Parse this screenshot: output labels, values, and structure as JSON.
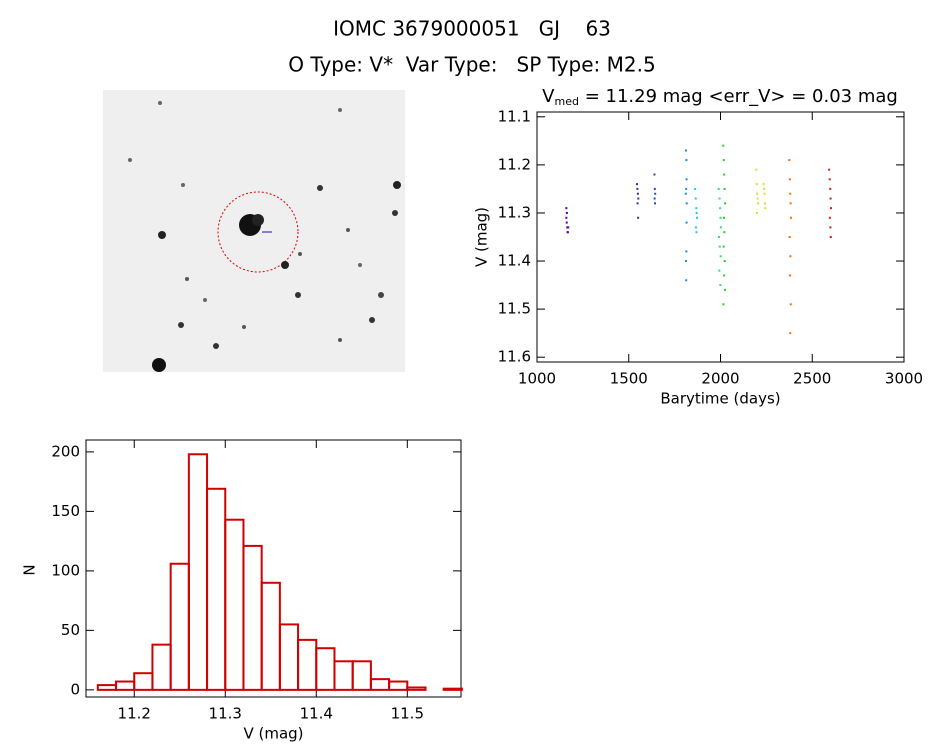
{
  "header": {
    "title": "IOMC 3679000051   GJ    63",
    "subtitle": "O Type: V*  Var Type:   SP Type: M2.5"
  },
  "chart_data": [
    {
      "type": "scatter",
      "title": {
        "main": "V",
        "sub": "med",
        "rest": " = 11.29 mag <err_V> = 0.03 mag"
      },
      "x_label": "Barytime (days)",
      "y_label": "V (mag)",
      "xlim": [
        1000,
        3000
      ],
      "xticks": [
        1000,
        1500,
        2000,
        2500,
        3000
      ],
      "ylim": [
        11.09,
        11.61
      ],
      "yticks": [
        11.1,
        11.2,
        11.3,
        11.4,
        11.5,
        11.6
      ],
      "y_inverted": true,
      "series": [
        {
          "color": "#5a0090",
          "x": [
            1160,
            1160,
            1162,
            1165,
            1168,
            1170,
            1163,
            1167
          ],
          "values": [
            11.29,
            11.31,
            11.32,
            11.33,
            11.34,
            11.33,
            11.3,
            11.34
          ]
        },
        {
          "color": "#3030a0",
          "x": [
            1545,
            1547,
            1550,
            1552,
            1548,
            1551
          ],
          "values": [
            11.24,
            11.25,
            11.26,
            11.27,
            11.28,
            11.31
          ]
        },
        {
          "color": "#2050b0",
          "x": [
            1640,
            1642,
            1644,
            1641,
            1643
          ],
          "values": [
            11.22,
            11.25,
            11.26,
            11.27,
            11.28
          ]
        },
        {
          "color": "#1090e0",
          "x": [
            1812,
            1814,
            1815,
            1813,
            1811,
            1816,
            1815,
            1814,
            1812,
            1813
          ],
          "values": [
            11.17,
            11.19,
            11.23,
            11.25,
            11.26,
            11.28,
            11.32,
            11.38,
            11.4,
            11.44
          ]
        },
        {
          "color": "#20c8e0",
          "x": [
            1862,
            1865,
            1868,
            1870,
            1872,
            1866,
            1869
          ],
          "values": [
            11.25,
            11.27,
            11.29,
            11.3,
            11.31,
            11.33,
            11.34
          ]
        },
        {
          "color": "#30e070",
          "x": [
            1990,
            1995,
            1998,
            2000,
            2002,
            1992,
            1996,
            2001,
            1994,
            1999
          ],
          "values": [
            11.25,
            11.27,
            11.29,
            11.31,
            11.33,
            11.35,
            11.37,
            11.39,
            11.42,
            11.45
          ]
        },
        {
          "color": "#20d020",
          "x": [
            2015,
            2018,
            2020,
            2022,
            2025,
            2019,
            2021,
            2017,
            2023,
            2020,
            2024,
            2016
          ],
          "values": [
            11.16,
            11.19,
            11.22,
            11.25,
            11.28,
            11.31,
            11.34,
            11.37,
            11.4,
            11.43,
            11.46,
            11.49
          ]
        },
        {
          "color": "#c8e830",
          "x": [
            2195,
            2198,
            2200,
            2202,
            2205,
            2199
          ],
          "values": [
            11.21,
            11.24,
            11.26,
            11.27,
            11.28,
            11.3
          ]
        },
        {
          "color": "#e8d820",
          "x": [
            2235,
            2238,
            2240,
            2242,
            2244
          ],
          "values": [
            11.24,
            11.25,
            11.26,
            11.28,
            11.29
          ]
        },
        {
          "color": "#f07010",
          "x": [
            2375,
            2378,
            2380,
            2382,
            2384,
            2377,
            2381,
            2379,
            2383,
            2380
          ],
          "values": [
            11.19,
            11.23,
            11.26,
            11.28,
            11.31,
            11.35,
            11.39,
            11.43,
            11.49,
            11.55
          ]
        },
        {
          "color": "#d02010",
          "x": [
            2592,
            2595,
            2598,
            2600,
            2602,
            2596,
            2599,
            2601
          ],
          "values": [
            11.21,
            11.23,
            11.25,
            11.27,
            11.29,
            11.31,
            11.33,
            11.35
          ]
        }
      ]
    },
    {
      "type": "histogram",
      "x_label": "V (mag)",
      "y_label": "N",
      "color": "#d00000",
      "bins": [
        11.16,
        11.18,
        11.2,
        11.22,
        11.24,
        11.26,
        11.28,
        11.3,
        11.32,
        11.34,
        11.36,
        11.38,
        11.4,
        11.42,
        11.44,
        11.46,
        11.48,
        11.5,
        11.52,
        11.54,
        11.56
      ],
      "values": [
        4,
        7,
        14,
        38,
        106,
        198,
        169,
        143,
        121,
        90,
        55,
        42,
        35,
        24,
        24,
        9,
        7,
        2,
        0,
        1
      ],
      "xlim": [
        11.147,
        11.559
      ],
      "xticks": [
        11.2,
        11.3,
        11.4,
        11.5
      ],
      "ylim": [
        -6,
        210
      ],
      "yticks": [
        0,
        50,
        100,
        150,
        200
      ]
    }
  ]
}
